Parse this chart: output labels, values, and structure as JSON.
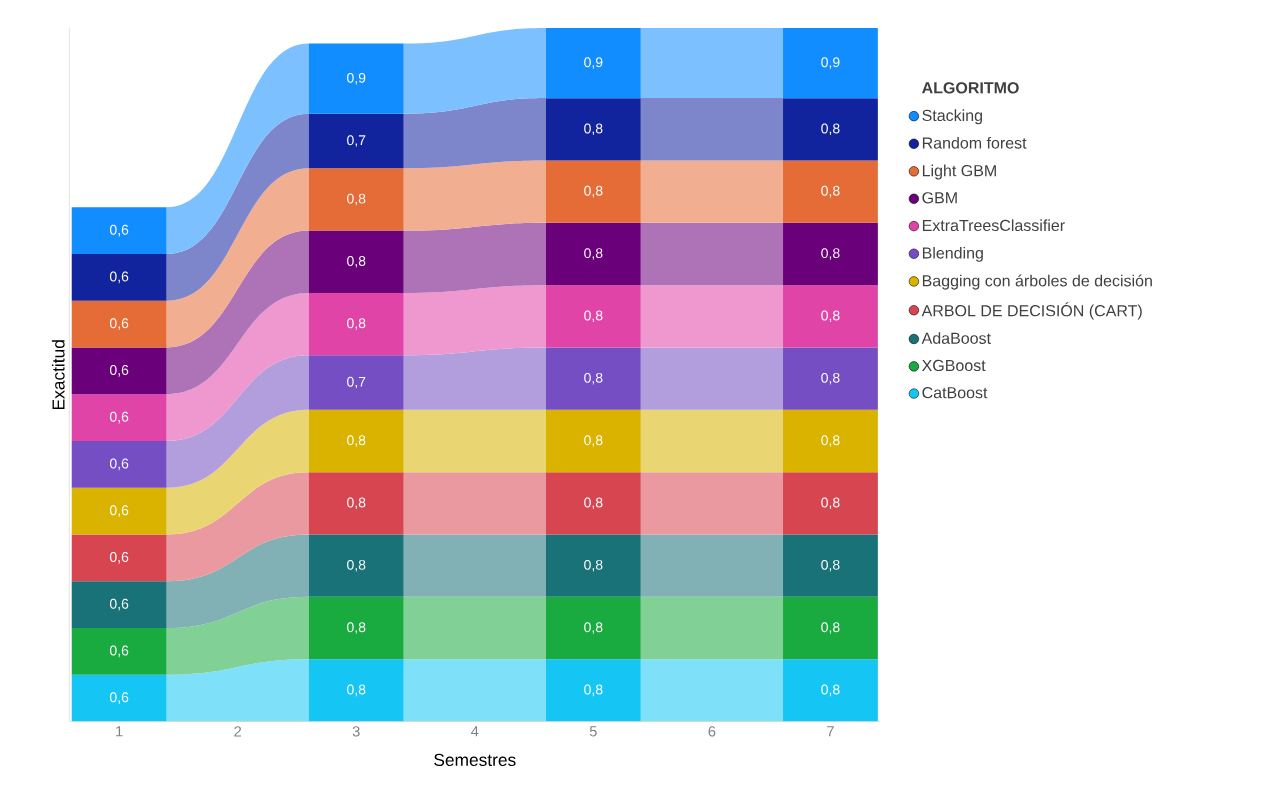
{
  "chart_data": {
    "type": "bar",
    "stacked": true,
    "xlabel": "Semestres",
    "ylabel": "Exactitud",
    "legend_title": "ALGORITMO",
    "legend": "right",
    "categories": [
      "1",
      "2",
      "3",
      "4",
      "5",
      "6",
      "7"
    ],
    "series": [
      {
        "name": "CatBoost",
        "color": "#15c6f4",
        "values": [
          0.6,
          null,
          0.8,
          null,
          0.8,
          null,
          0.8
        ],
        "value_labels": [
          "0,6",
          null,
          "0,8",
          null,
          "0,8",
          null,
          "0,8"
        ]
      },
      {
        "name": "XGBoost",
        "color": "#1aab40",
        "values": [
          0.6,
          null,
          0.8,
          null,
          0.8,
          null,
          0.8
        ],
        "value_labels": [
          "0,6",
          null,
          "0,8",
          null,
          "0,8",
          null,
          "0,8"
        ]
      },
      {
        "name": "AdaBoost",
        "color": "#197278",
        "values": [
          0.6,
          null,
          0.8,
          null,
          0.8,
          null,
          0.8
        ],
        "value_labels": [
          "0,6",
          null,
          "0,8",
          null,
          "0,8",
          null,
          "0,8"
        ]
      },
      {
        "name": "ARBOL DE DECISIÓN (CART)",
        "color": "#d64550",
        "values": [
          0.6,
          null,
          0.8,
          null,
          0.8,
          null,
          0.8
        ],
        "value_labels": [
          "0,6",
          null,
          "0,8",
          null,
          "0,8",
          null,
          "0,8"
        ]
      },
      {
        "name": "Bagging con árboles de decisión",
        "color": "#d9b300",
        "values": [
          0.6,
          null,
          0.8,
          null,
          0.8,
          null,
          0.8
        ],
        "value_labels": [
          "0,6",
          null,
          "0,8",
          null,
          "0,8",
          null,
          "0,8"
        ]
      },
      {
        "name": "Blending",
        "color": "#744ec2",
        "values": [
          0.6,
          null,
          0.7,
          null,
          0.8,
          null,
          0.8
        ],
        "value_labels": [
          "0,6",
          null,
          "0,7",
          null,
          "0,8",
          null,
          "0,8"
        ]
      },
      {
        "name": "ExtraTreesClassifier",
        "color": "#e044a7",
        "values": [
          0.6,
          null,
          0.8,
          null,
          0.8,
          null,
          0.8
        ],
        "value_labels": [
          "0,6",
          null,
          "0,8",
          null,
          "0,8",
          null,
          "0,8"
        ]
      },
      {
        "name": "GBM",
        "color": "#6b007b",
        "values": [
          0.6,
          null,
          0.8,
          null,
          0.8,
          null,
          0.8
        ],
        "value_labels": [
          "0,6",
          null,
          "0,8",
          null,
          "0,8",
          null,
          "0,8"
        ]
      },
      {
        "name": "Light GBM",
        "color": "#e66c37",
        "values": [
          0.6,
          null,
          0.8,
          null,
          0.8,
          null,
          0.8
        ],
        "value_labels": [
          "0,6",
          null,
          "0,8",
          null,
          "0,8",
          null,
          "0,8"
        ]
      },
      {
        "name": "Random forest",
        "color": "#12239e",
        "values": [
          0.6,
          null,
          0.7,
          null,
          0.8,
          null,
          0.8
        ],
        "value_labels": [
          "0,6",
          null,
          "0,7",
          null,
          "0,8",
          null,
          "0,8"
        ]
      },
      {
        "name": "Stacking",
        "color": "#118dff",
        "values": [
          0.6,
          null,
          0.9,
          null,
          0.9,
          null,
          0.9
        ],
        "value_labels": [
          "0,6",
          null,
          "0,9",
          null,
          "0,9",
          null,
          "0,9"
        ]
      }
    ]
  }
}
